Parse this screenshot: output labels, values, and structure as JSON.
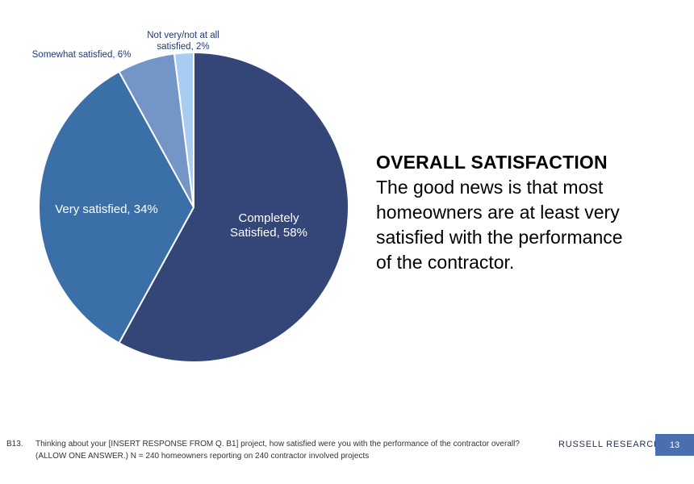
{
  "chart_data": {
    "type": "pie",
    "slices": [
      {
        "label_lines": [
          "Completely",
          "Satisfied, 58%"
        ],
        "value": 58,
        "color": "#344677",
        "label_color": "#ffffff"
      },
      {
        "label_lines": [
          "Very satisfied, 34%"
        ],
        "value": 34,
        "color": "#3a6fa8",
        "label_color": "#ffffff"
      },
      {
        "label_lines": [
          "Somewhat satisfied, 6%"
        ],
        "value": 6,
        "color": "#7496c6",
        "label_color": "#1f3a78"
      },
      {
        "label_lines": [
          "Not very/not at all",
          "satisfied, 2%"
        ],
        "value": 2,
        "color": "#a9cdf2",
        "label_color": "#1f3a78"
      }
    ]
  },
  "headline": {
    "title": "OVERALL SATISFACTION",
    "lines": [
      "The good news is that most",
      "homeowners are at least very",
      "satisfied with the performance",
      "of the contractor."
    ]
  },
  "footnote": {
    "question_number": "B13.",
    "lines": [
      "Thinking about your [INSERT RESPONSE FROM Q. B1] project, how satisfied were you with the performance of the contractor overall?",
      "(ALLOW ONE ANSWER.) N = 240 homeowners reporting on 240 contractor involved projects"
    ]
  },
  "brand": "RUSSELL RESEARCH",
  "page_number": "13"
}
